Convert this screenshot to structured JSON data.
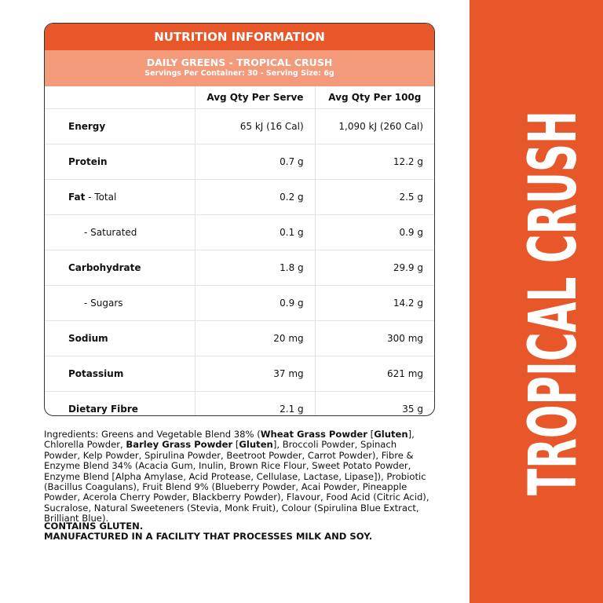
{
  "panel": {
    "title": "NUTRITION INFORMATION",
    "product": "DAILY GREENS - TROPICAL CRUSH",
    "servings": "Servings Per Container: 30 - Serving Size: 6g"
  },
  "table": {
    "columns": [
      "Avg Qty Per Serve",
      "Avg Qty Per 100g"
    ],
    "rows": [
      {
        "name": "Energy",
        "serve": "65 kJ (16 Cal)",
        "per100": "1,090 kJ (260 Cal)"
      },
      {
        "name": "Protein",
        "serve": "0.7 g",
        "per100": "12.2 g"
      },
      {
        "name": "Fat",
        "suffix": "- Total",
        "serve": "0.2 g",
        "per100": "2.5 g"
      },
      {
        "name": "- Saturated",
        "sub": true,
        "serve": "0.1 g",
        "per100": "0.9 g"
      },
      {
        "name": "Carbohydrate",
        "serve": "1.8 g",
        "per100": "29.9 g"
      },
      {
        "name": "- Sugars",
        "sub": true,
        "serve": "0.9 g",
        "per100": "14.2 g"
      },
      {
        "name": "Sodium",
        "serve": "20 mg",
        "per100": "300 mg"
      },
      {
        "name": "Potassium",
        "serve": "37 mg",
        "per100": "621 mg"
      },
      {
        "name": "Dietary Fibre",
        "serve": "2.1 g",
        "per100": "35 g"
      }
    ]
  },
  "ingredients": [
    {
      "text": "Ingredients: Greens and Vegetable Blend 38% (",
      "bold": false
    },
    {
      "text": "Wheat Grass Powder",
      "bold": true
    },
    {
      "text": " [",
      "bold": false
    },
    {
      "text": "Gluten",
      "bold": true
    },
    {
      "text": "], Chlorella Powder, ",
      "bold": false
    },
    {
      "text": "Barley Grass Powder",
      "bold": true
    },
    {
      "text": " [",
      "bold": false
    },
    {
      "text": "Gluten",
      "bold": true
    },
    {
      "text": "], Broccoli Powder, Spinach Powder, Kelp Powder, Spirulina Powder, Beetroot Powder, Carrot Powder), Fibre & Enzyme Blend 34% (Acacia Gum, Inulin, Brown Rice Flour, Sweet Potato Powder, Enzyme Blend [Alpha Amylase, Acid Protease, Cellulase, Lactase, Lipase]), Probiotic (Bacillus Coagulans), Fruit Blend 9% (Blueberry Powder, Acai Powder, Pineapple Powder, Acerola Cherry Powder, Blackberry Powder), Flavour, Food Acid (Citric Acid), Sucralose, Natural Sweeteners (Stevia, Monk Fruit), Colour (Spirulina Blue Extract, Brilliant Blue).",
      "bold": false
    }
  ],
  "warnings": [
    "CONTAINS GLUTEN.",
    "MANUFACTURED IN A FACILITY THAT PROCESSES MILK AND SOY."
  ],
  "side_label": "TROPICAL CRUSH"
}
